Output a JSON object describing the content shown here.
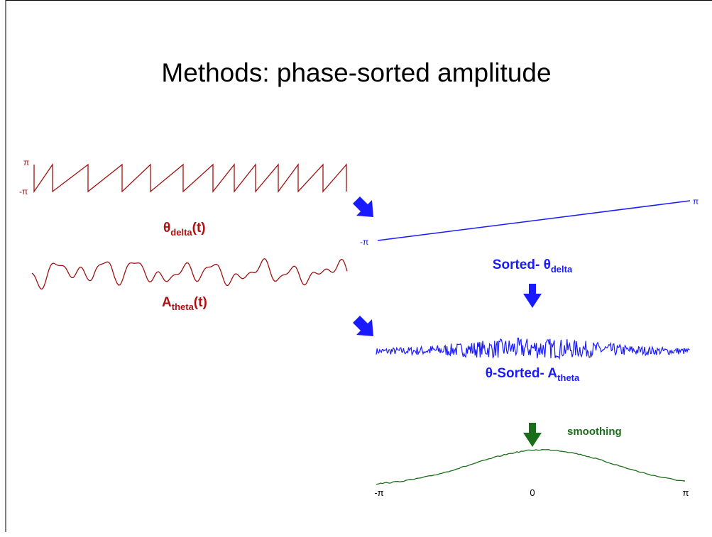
{
  "title": "Methods: phase-sorted amplitude",
  "phase_panel": {
    "top_label": "π",
    "bottom_label": "-π",
    "label": {
      "symbol": "θ",
      "subscript": "delta",
      "suffix": "(t)"
    }
  },
  "amplitude_panel": {
    "label": {
      "symbol": "A",
      "subscript": "theta",
      "suffix": "(t)"
    }
  },
  "sorted_phase_panel": {
    "left_label": "-π",
    "right_label": "π",
    "label": {
      "text": "Sorted- θ",
      "subscript": "delta"
    }
  },
  "sorted_amplitude_panel": {
    "label": {
      "text": "θ-Sorted- A",
      "subscript": "theta"
    }
  },
  "smoothed_panel": {
    "step_label": "smoothing",
    "axis_labels": [
      "-π",
      "0",
      "π"
    ]
  }
}
